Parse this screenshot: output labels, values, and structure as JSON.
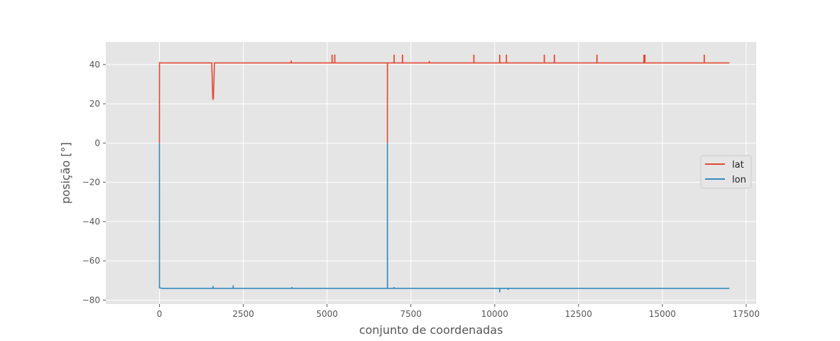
{
  "chart_data": {
    "type": "line",
    "title": "",
    "xlabel": "conjunto de coordenadas",
    "ylabel": "posição [°]",
    "xlim": [
      -1600,
      17800
    ],
    "ylim": [
      -82,
      51.5
    ],
    "xticks": [
      0,
      2500,
      5000,
      7500,
      10000,
      12500,
      15000,
      17500
    ],
    "xtick_labels": [
      "0",
      "2500",
      "5000",
      "7500",
      "10000",
      "12500",
      "15000",
      "17500"
    ],
    "yticks": [
      40,
      20,
      0,
      -20,
      -40,
      -60,
      -80
    ],
    "ytick_labels": [
      "40",
      "20",
      "0",
      "−20",
      "−40",
      "−60",
      "−80"
    ],
    "grid": true,
    "style": "ggplot",
    "legend_position": "center-right",
    "series": [
      {
        "name": "lat",
        "color": "#E24A33",
        "x": [
          0,
          1,
          50,
          1560,
          1590,
          1600,
          1610,
          1640,
          5000,
          6799,
          6800,
          6801,
          7000,
          17000
        ],
        "y": [
          0,
          40.9,
          40.8,
          40.8,
          23.0,
          22.0,
          23.0,
          40.8,
          40.8,
          40.8,
          0,
          40.8,
          40.8,
          40.8
        ],
        "spikes": [
          {
            "x": 3930,
            "y": 42.0
          },
          {
            "x": 5150,
            "y": 45.0
          },
          {
            "x": 5230,
            "y": 45.0
          },
          {
            "x": 7000,
            "y": 45.0
          },
          {
            "x": 7250,
            "y": 45.0
          },
          {
            "x": 8050,
            "y": 41.8
          },
          {
            "x": 9380,
            "y": 45.0
          },
          {
            "x": 10150,
            "y": 45.0
          },
          {
            "x": 10350,
            "y": 45.0
          },
          {
            "x": 11480,
            "y": 45.0
          },
          {
            "x": 11780,
            "y": 45.0
          },
          {
            "x": 13050,
            "y": 45.0
          },
          {
            "x": 14450,
            "y": 45.0
          },
          {
            "x": 14480,
            "y": 45.0
          },
          {
            "x": 16250,
            "y": 45.0
          }
        ]
      },
      {
        "name": "lon",
        "color": "#348ABD",
        "x": [
          0,
          1,
          100,
          6799,
          6800,
          6801,
          7000,
          17000
        ],
        "y": [
          0,
          -73.8,
          -74.0,
          -74.0,
          0,
          -74.0,
          -74.0,
          -74.0
        ],
        "spikes": [
          {
            "x": 1600,
            "y": -72.8
          },
          {
            "x": 2200,
            "y": -72.5
          },
          {
            "x": 3950,
            "y": -73.3
          },
          {
            "x": 7000,
            "y": -73.3
          },
          {
            "x": 10150,
            "y": -76.0
          },
          {
            "x": 10400,
            "y": -74.8
          }
        ]
      }
    ]
  }
}
